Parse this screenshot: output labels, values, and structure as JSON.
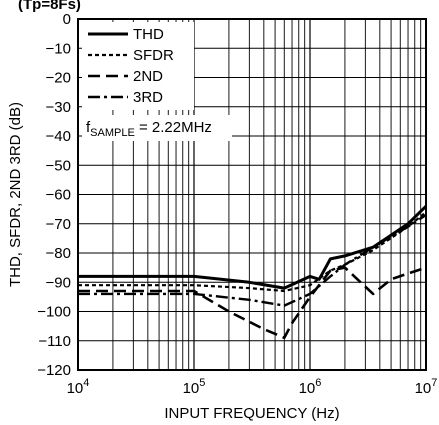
{
  "chart_data": {
    "type": "line",
    "title": "",
    "header_fragment": "(Tp=8Fs)",
    "xlabel": "INPUT FREQUENCY (Hz)",
    "ylabel": "THD, SFDR, 2ND 3RD (dB)",
    "x_scale": "log",
    "xlim": [
      10000,
      10000000
    ],
    "ylim": [
      -120,
      0
    ],
    "x_ticks": [
      {
        "value": 10000,
        "base": "10",
        "exp": "4"
      },
      {
        "value": 100000,
        "base": "10",
        "exp": "5"
      },
      {
        "value": 1000000,
        "base": "10",
        "exp": "6"
      },
      {
        "value": 10000000,
        "base": "10",
        "exp": "7"
      }
    ],
    "y_ticks": [
      0,
      -10,
      -20,
      -30,
      -40,
      -50,
      -60,
      -70,
      -80,
      -90,
      -100,
      -110,
      -120
    ],
    "y_tick_labels": [
      "0",
      "−10",
      "−20",
      "−30",
      "−40",
      "−50",
      "−60",
      "−70",
      "−80",
      "−90",
      "−100",
      "−110",
      "−120"
    ],
    "grid": true,
    "legend_position": "top-left",
    "annotation": {
      "prefix": "f",
      "subscript": "SAMPLE",
      "suffix": " = 2.22MHz"
    },
    "series": [
      {
        "name": "THD",
        "style": "solid",
        "x": [
          10000,
          100000,
          300000,
          600000,
          1000000,
          1200000,
          1500000,
          2000000,
          3500000,
          7000000,
          10000000
        ],
        "y": [
          -88,
          -88,
          -90,
          -92,
          -88,
          -89,
          -82,
          -81,
          -78,
          -70,
          -64
        ]
      },
      {
        "name": "SFDR",
        "style": "dotted",
        "x": [
          10000,
          100000,
          300000,
          600000,
          1000000,
          1500000,
          2000000,
          3500000,
          7000000,
          10000000
        ],
        "y": [
          -91,
          -91,
          -92,
          -93,
          -91,
          -86,
          -84,
          -79,
          -71,
          -66
        ]
      },
      {
        "name": "2ND",
        "style": "dashed",
        "x": [
          10000,
          100000,
          200000,
          400000,
          600000,
          700000,
          1000000,
          1500000,
          2000000,
          3500000,
          5000000,
          7000000,
          10000000
        ],
        "y": [
          -93,
          -93,
          -100,
          -106,
          -109,
          -104,
          -95,
          -86,
          -85,
          -94,
          -89,
          -87,
          -85
        ]
      },
      {
        "name": "3RD",
        "style": "dashdot",
        "x": [
          10000,
          100000,
          300000,
          600000,
          1000000,
          1500000,
          2000000,
          3500000,
          7000000,
          10000000
        ],
        "y": [
          -94,
          -94,
          -96,
          -98,
          -94,
          -88,
          -84,
          -78,
          -71,
          -67
        ]
      }
    ]
  }
}
